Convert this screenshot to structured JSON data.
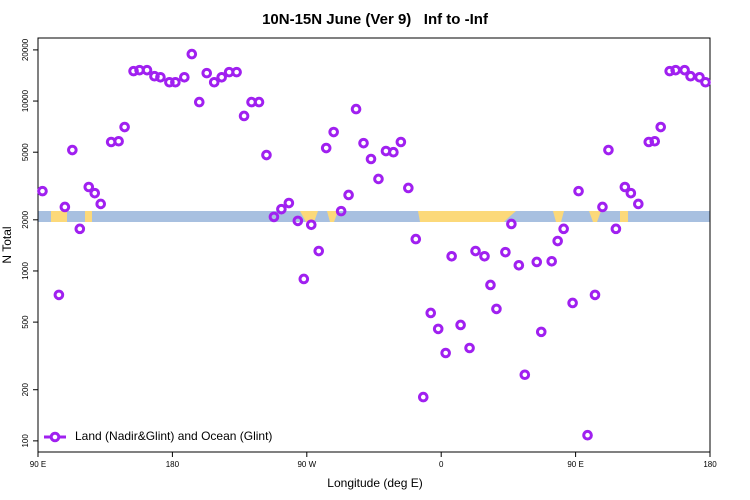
{
  "chart_data": {
    "type": "scatter",
    "title": "10N-15N June (Ver 9)   Inf to -Inf",
    "x_label": "Longitude (deg E)",
    "y_label": "N Total",
    "log_y": true,
    "legend": "bottom-left",
    "xlim": [
      90,
      540
    ],
    "xticks": [
      {
        "value": 90,
        "label": "90 E"
      },
      180,
      {
        "value": 270,
        "label": "90 W"
      },
      {
        "value": 360,
        "label": "0"
      },
      {
        "value": 450,
        "label": "90 E"
      },
      {
        "value": 540,
        "label": "180"
      }
    ],
    "ylim": [
      86,
      23500
    ],
    "yticks": [
      100,
      200,
      500,
      1000,
      2000,
      5000,
      10000,
      20000
    ],
    "x": [
      93,
      104,
      108,
      113,
      118,
      124,
      128,
      132,
      139,
      144,
      148,
      154,
      158,
      163,
      168,
      172,
      178,
      182,
      188,
      193,
      198,
      203,
      208,
      213,
      218,
      223,
      228,
      233,
      238,
      243,
      248,
      253,
      258,
      264,
      268,
      273,
      278,
      283,
      288,
      293,
      298,
      303,
      308,
      313,
      318,
      323,
      328,
      333,
      338,
      343,
      348,
      353,
      358,
      363,
      367,
      373,
      379,
      383,
      389,
      393,
      397,
      403,
      407,
      412,
      416,
      424,
      427,
      434,
      438,
      442,
      448,
      452,
      458,
      463,
      468,
      472,
      477,
      483,
      487,
      492,
      499,
      503,
      507,
      513,
      517,
      523,
      527,
      533,
      537
    ],
    "series": [
      {
        "name": "Land (Nadir&Glint) and Ocean (Glint)",
        "color": "#a020f0",
        "values": [
          2950,
          723,
          2380,
          5150,
          1770,
          3120,
          2870,
          2480,
          5740,
          5800,
          7030,
          15000,
          15200,
          15200,
          14000,
          13800,
          12900,
          12900,
          13800,
          18900,
          9860,
          14600,
          12900,
          13800,
          14800,
          14800,
          8170,
          9860,
          9860,
          4810,
          2080,
          2310,
          2510,
          1970,
          897,
          1870,
          1310,
          5290,
          6570,
          2250,
          2800,
          8970,
          5650,
          4560,
          3480,
          5080,
          5000,
          5740,
          3080,
          1540,
          181,
          566,
          456,
          329,
          1220,
          481,
          352,
          1310,
          1220,
          827,
          598,
          1290,
          1890,
          1080,
          245,
          1130,
          438,
          1140,
          1500,
          1770,
          648,
          2950,
          108,
          723,
          2380,
          5150,
          1770,
          3120,
          2870,
          2480,
          5740,
          5800,
          7030,
          15000,
          15200,
          15200,
          14000,
          13800,
          12900
        ]
      }
    ]
  }
}
